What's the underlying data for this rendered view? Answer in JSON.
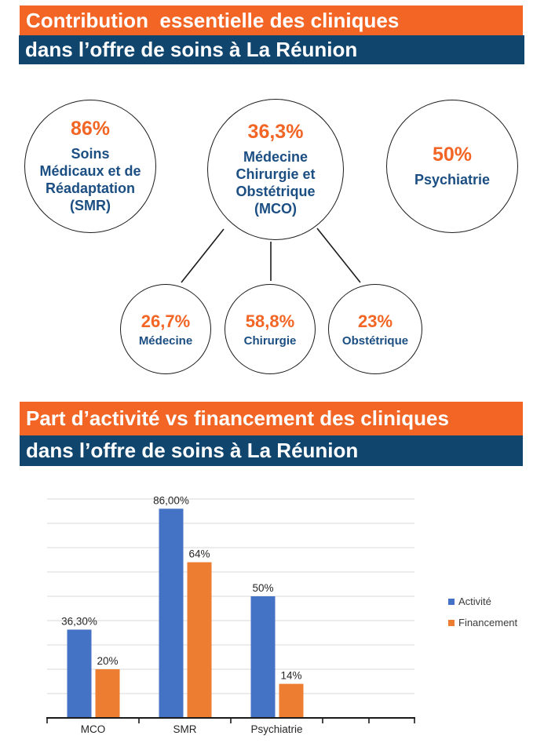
{
  "colors": {
    "header_orange": "#F26524",
    "header_navy": "#10456E",
    "accent_orange": "#F26524",
    "accent_navy": "#1B4E82",
    "bar_blue": "#4472C4",
    "bar_orange": "#ED7D31",
    "gridline": "#D9D9D9",
    "axis": "#1a1a1a",
    "chart_text": "#262626"
  },
  "header1": {
    "line1": "Contribution  essentielle des cliniques",
    "line2": "dans l’offre de soins à La Réunion"
  },
  "header2": {
    "line1": "Part d’activité vs financement des cliniques",
    "line2": "dans l’offre de soins à La Réunion"
  },
  "diagram": {
    "main_circles": [
      {
        "value": "86%",
        "label": "Soins\nMédicaux et de\nRéadaptation\n(SMR)"
      },
      {
        "value": "36,3%",
        "label": "Médecine\nChirurgie et\nObstétrique\n(MCO)"
      },
      {
        "value": "50%",
        "label": "Psychiatrie"
      }
    ],
    "sub_circles": [
      {
        "value": "26,7%",
        "label": "Médecine"
      },
      {
        "value": "58,8%",
        "label": "Chirurgie"
      },
      {
        "value": "23%",
        "label": "Obstétrique"
      }
    ]
  },
  "chart_data": {
    "type": "bar",
    "title": "",
    "categories": [
      "MCO",
      "SMR",
      "Psychiatrie"
    ],
    "series": [
      {
        "name": "Activité",
        "color": "#4472C4",
        "values": [
          36.3,
          86.0,
          50
        ],
        "labels": [
          "36,30%",
          "86,00%",
          "50%"
        ]
      },
      {
        "name": "Financement",
        "color": "#ED7D31",
        "values": [
          20,
          64,
          14
        ],
        "labels": [
          "20%",
          "64%",
          "14%"
        ]
      }
    ],
    "xlabel": "",
    "ylabel": "",
    "ylim": [
      0,
      90
    ],
    "grid": true,
    "gridline_step": 10,
    "y_axis_labels": false,
    "data_labels": true,
    "legend_position": "right"
  }
}
